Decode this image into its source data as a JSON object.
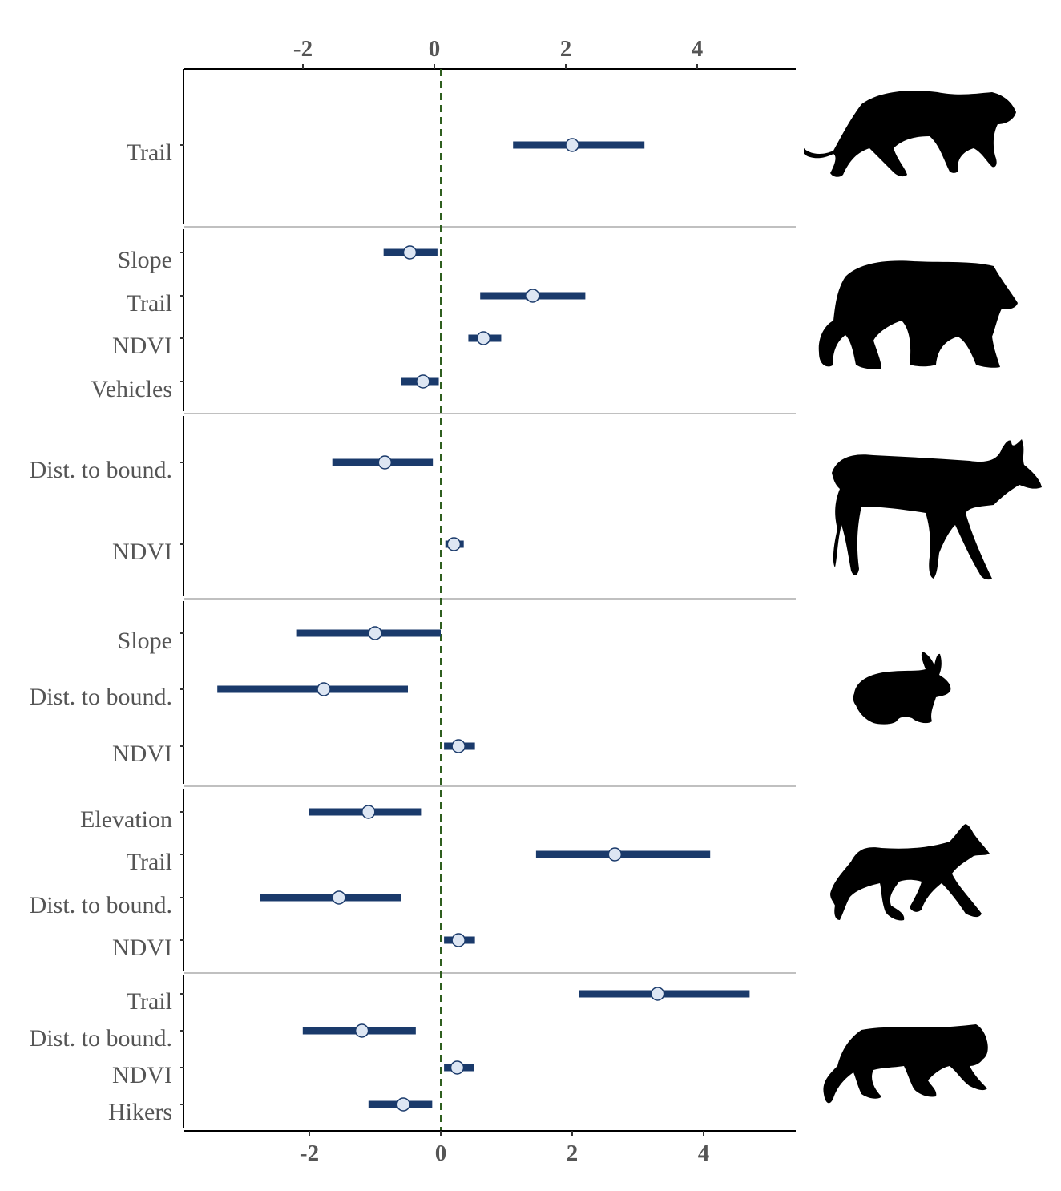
{
  "chart_data": {
    "type": "forest",
    "title": "",
    "xlabel": "",
    "ylabel": "",
    "xlim": [
      -3.9,
      5.4
    ],
    "x_ticks_top": [
      "-2",
      "0",
      "2",
      "4"
    ],
    "x_ticks_bottom": [
      "-2",
      "0",
      "2",
      "4"
    ],
    "reference_line": 0,
    "colors": {
      "interval": "#1a3a6b",
      "point_fill": "#dde6f3",
      "point_stroke": "#1a3a6b",
      "reference": "#2e5e1e",
      "panel_border": "#c0c0c0"
    },
    "panels": [
      {
        "animal": "cougar-silhouette",
        "rows": [
          {
            "label": "Trail",
            "estimate": 2.0,
            "lower": 1.1,
            "upper": 3.1
          }
        ]
      },
      {
        "animal": "bear-silhouette",
        "rows": [
          {
            "label": "Slope",
            "estimate": -0.47,
            "lower": -0.87,
            "upper": -0.05
          },
          {
            "label": "Trail",
            "estimate": 1.4,
            "lower": 0.6,
            "upper": 2.2
          },
          {
            "label": "NDVI",
            "estimate": 0.65,
            "lower": 0.42,
            "upper": 0.92
          },
          {
            "label": "Vehicles",
            "estimate": -0.27,
            "lower": -0.6,
            "upper": -0.03
          }
        ]
      },
      {
        "animal": "deer-silhouette",
        "rows": [
          {
            "label": "Dist. to bound.",
            "estimate": -0.85,
            "lower": -1.65,
            "upper": -0.12
          },
          {
            "label": "NDVI",
            "estimate": 0.2,
            "lower": 0.07,
            "upper": 0.35
          }
        ]
      },
      {
        "animal": "rabbit-silhouette",
        "rows": [
          {
            "label": "Slope",
            "estimate": -1.0,
            "lower": -2.2,
            "upper": 0.0
          },
          {
            "label": "Dist. to bound.",
            "estimate": -1.78,
            "lower": -3.4,
            "upper": -0.5
          },
          {
            "label": "NDVI",
            "estimate": 0.27,
            "lower": 0.05,
            "upper": 0.52
          }
        ]
      },
      {
        "animal": "coyote-silhouette",
        "rows": [
          {
            "label": "Elevation",
            "estimate": -1.1,
            "lower": -2.0,
            "upper": -0.3
          },
          {
            "label": "Trail",
            "estimate": 2.65,
            "lower": 1.45,
            "upper": 4.1
          },
          {
            "label": "Dist. to bound.",
            "estimate": -1.55,
            "lower": -2.75,
            "upper": -0.6
          },
          {
            "label": "NDVI",
            "estimate": 0.27,
            "lower": 0.05,
            "upper": 0.52
          }
        ]
      },
      {
        "animal": "bobcat-silhouette",
        "rows": [
          {
            "label": "Trail",
            "estimate": 3.3,
            "lower": 2.1,
            "upper": 4.7
          },
          {
            "label": "Dist. to bound.",
            "estimate": -1.2,
            "lower": -2.1,
            "upper": -0.38
          },
          {
            "label": "NDVI",
            "estimate": 0.25,
            "lower": 0.05,
            "upper": 0.5
          },
          {
            "label": "Hikers",
            "estimate": -0.57,
            "lower": -1.1,
            "upper": -0.13
          }
        ]
      }
    ]
  }
}
